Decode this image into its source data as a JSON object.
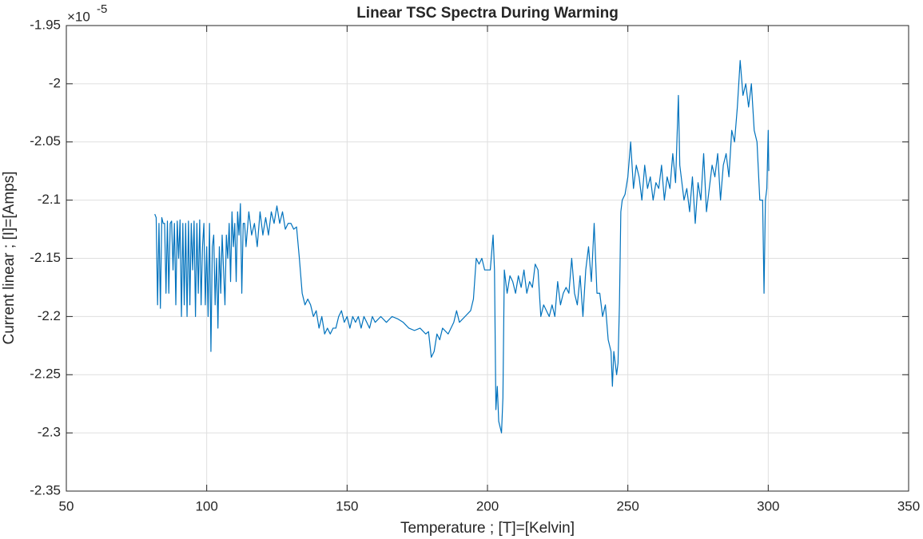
{
  "chart_data": {
    "type": "line",
    "title": "Linear TSC Spectra During Warming",
    "x_label": "Temperature ; [T]=[Kelvin]",
    "y_label": "Current linear ; [I]=[Amps]",
    "y_exponent_label": {
      "base": "×10",
      "exponent": "-5"
    },
    "xlim": [
      50,
      350
    ],
    "xticks": [
      50,
      100,
      150,
      200,
      250,
      300,
      350
    ],
    "ylim": [
      -2.35,
      -1.95
    ],
    "yticks": [
      -2.35,
      -2.3,
      -2.25,
      -2.2,
      -2.15,
      -2.1,
      -2.05,
      -2,
      -1.95
    ],
    "grid": true,
    "color": "#0072bd",
    "x": [
      81.5,
      82,
      82.5,
      83,
      83.5,
      84,
      84.5,
      85,
      85.5,
      86,
      86.5,
      87,
      87.5,
      88,
      88.5,
      89,
      89.5,
      90,
      90.5,
      91,
      91.5,
      92,
      92.5,
      93,
      93.5,
      94,
      94.5,
      95,
      95.5,
      96,
      96.5,
      97,
      97.5,
      98,
      98.5,
      99,
      99.5,
      100,
      100.5,
      101,
      101.5,
      102,
      102.5,
      103,
      103.5,
      104,
      104.5,
      105,
      105.5,
      106,
      106.5,
      107,
      107.5,
      108,
      108.5,
      109,
      109.5,
      110,
      110.5,
      111,
      111.5,
      112,
      112.5,
      113,
      113.5,
      114,
      115,
      116,
      117,
      118,
      119,
      120,
      121,
      122,
      123,
      124,
      125,
      126,
      127,
      128,
      129,
      130,
      131,
      132,
      133,
      134,
      135,
      136,
      137,
      138,
      139,
      140,
      141,
      142,
      143,
      144,
      145,
      146,
      147,
      148,
      149,
      150,
      151,
      152,
      153,
      154,
      155,
      156,
      157,
      158,
      159,
      160,
      162,
      164,
      166,
      168,
      170,
      172,
      174,
      176,
      178,
      179,
      180,
      181,
      182,
      183,
      184,
      186,
      188,
      189,
      190,
      192,
      194,
      195,
      196,
      197,
      198,
      199,
      200,
      201,
      202,
      202.5,
      203,
      203.5,
      204,
      205,
      205.5,
      206,
      207,
      208,
      209,
      210,
      211,
      212,
      213,
      214,
      215,
      216,
      217,
      218,
      219,
      220,
      221,
      222,
      223,
      224,
      225,
      226,
      227,
      228,
      229,
      230,
      231,
      232,
      233,
      234,
      235,
      236,
      237,
      238,
      239,
      240,
      241,
      242,
      243,
      244,
      244.5,
      245,
      246,
      246.5,
      247,
      247.5,
      248,
      249,
      250,
      251,
      252,
      253,
      254,
      255,
      256,
      257,
      258,
      259,
      260,
      261,
      262,
      263,
      264,
      265,
      266,
      267,
      268,
      268.5,
      269,
      270,
      271,
      272,
      273,
      274,
      275,
      276,
      277,
      278,
      279,
      280,
      281,
      282,
      283,
      284,
      285,
      286,
      287,
      288,
      289,
      290,
      291,
      292,
      293,
      294,
      295,
      296,
      297,
      298,
      298.5,
      299,
      299.5,
      300,
      300.2
    ],
    "values": [
      -2.112,
      -2.115,
      -2.19,
      -2.12,
      -2.193,
      -2.115,
      -2.12,
      -2.12,
      -2.18,
      -2.118,
      -2.18,
      -2.12,
      -2.118,
      -2.16,
      -2.12,
      -2.19,
      -2.118,
      -2.15,
      -2.117,
      -2.2,
      -2.12,
      -2.19,
      -2.12,
      -2.2,
      -2.118,
      -2.19,
      -2.12,
      -2.16,
      -2.118,
      -2.2,
      -2.12,
      -2.18,
      -2.117,
      -2.19,
      -2.14,
      -2.12,
      -2.19,
      -2.14,
      -2.2,
      -2.12,
      -2.23,
      -2.14,
      -2.13,
      -2.19,
      -2.15,
      -2.21,
      -2.14,
      -2.18,
      -2.13,
      -2.16,
      -2.19,
      -2.13,
      -2.15,
      -2.12,
      -2.17,
      -2.11,
      -2.14,
      -2.12,
      -2.17,
      -2.11,
      -2.13,
      -2.103,
      -2.18,
      -2.12,
      -2.12,
      -2.14,
      -2.11,
      -2.13,
      -2.12,
      -2.14,
      -2.11,
      -2.13,
      -2.115,
      -2.13,
      -2.11,
      -2.12,
      -2.105,
      -2.12,
      -2.11,
      -2.125,
      -2.12,
      -2.12,
      -2.125,
      -2.123,
      -2.15,
      -2.18,
      -2.19,
      -2.185,
      -2.19,
      -2.2,
      -2.195,
      -2.21,
      -2.2,
      -2.215,
      -2.21,
      -2.215,
      -2.21,
      -2.21,
      -2.2,
      -2.195,
      -2.205,
      -2.2,
      -2.21,
      -2.2,
      -2.205,
      -2.2,
      -2.21,
      -2.2,
      -2.205,
      -2.21,
      -2.2,
      -2.205,
      -2.2,
      -2.205,
      -2.2,
      -2.202,
      -2.205,
      -2.21,
      -2.212,
      -2.21,
      -2.215,
      -2.213,
      -2.235,
      -2.23,
      -2.215,
      -2.22,
      -2.21,
      -2.215,
      -2.205,
      -2.195,
      -2.205,
      -2.2,
      -2.195,
      -2.185,
      -2.15,
      -2.155,
      -2.15,
      -2.16,
      -2.16,
      -2.16,
      -2.13,
      -2.16,
      -2.28,
      -2.26,
      -2.29,
      -2.3,
      -2.27,
      -2.16,
      -2.18,
      -2.165,
      -2.17,
      -2.18,
      -2.165,
      -2.175,
      -2.16,
      -2.18,
      -2.17,
      -2.175,
      -2.155,
      -2.16,
      -2.2,
      -2.19,
      -2.195,
      -2.2,
      -2.19,
      -2.2,
      -2.17,
      -2.19,
      -2.18,
      -2.175,
      -2.18,
      -2.15,
      -2.18,
      -2.19,
      -2.165,
      -2.2,
      -2.16,
      -2.14,
      -2.17,
      -2.12,
      -2.18,
      -2.18,
      -2.2,
      -2.19,
      -2.22,
      -2.23,
      -2.26,
      -2.23,
      -2.25,
      -2.24,
      -2.19,
      -2.11,
      -2.1,
      -2.095,
      -2.08,
      -2.05,
      -2.09,
      -2.07,
      -2.08,
      -2.1,
      -2.07,
      -2.09,
      -2.08,
      -2.1,
      -2.085,
      -2.09,
      -2.07,
      -2.1,
      -2.08,
      -2.09,
      -2.06,
      -2.085,
      -2.01,
      -2.07,
      -2.08,
      -2.1,
      -2.09,
      -2.11,
      -2.08,
      -2.12,
      -2.085,
      -2.1,
      -2.06,
      -2.11,
      -2.09,
      -2.07,
      -2.08,
      -2.06,
      -2.1,
      -2.07,
      -2.06,
      -2.08,
      -2.04,
      -2.05,
      -2.02,
      -1.98,
      -2.01,
      -2.0,
      -2.02,
      -2.0,
      -2.04,
      -2.05,
      -2.1,
      -2.1,
      -2.18,
      -2.1,
      -2.09,
      -2.04,
      -2.075
    ]
  }
}
